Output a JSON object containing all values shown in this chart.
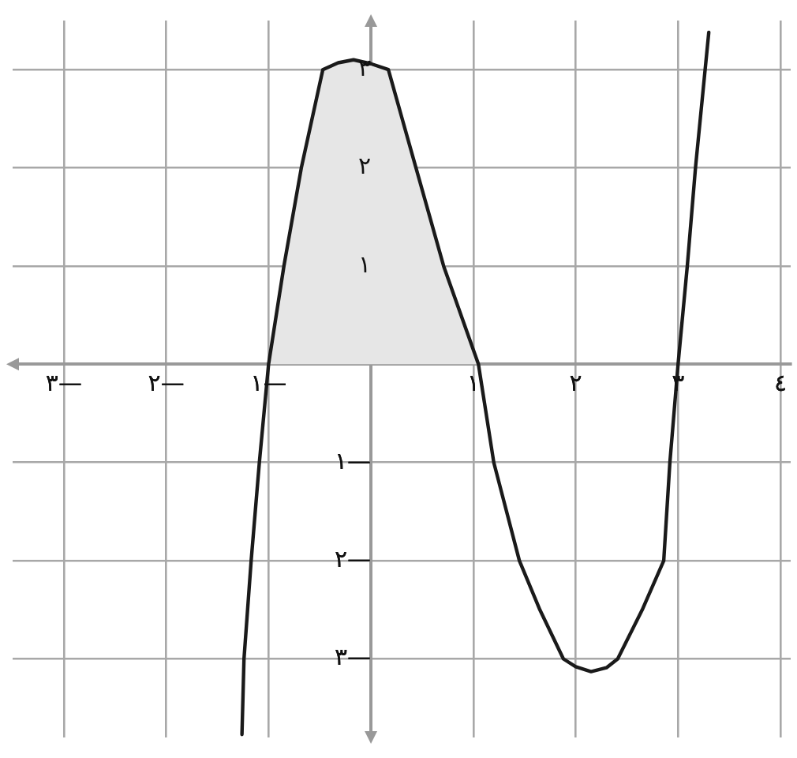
{
  "chart_data": {
    "type": "line",
    "xlim": [
      -3.5,
      4.1
    ],
    "ylim": [
      -3.8,
      3.5
    ],
    "xticks": [
      {
        "value": -3,
        "label": "٣—"
      },
      {
        "value": -2,
        "label": "٢—"
      },
      {
        "value": -1,
        "label": "١—"
      },
      {
        "value": 1,
        "label": "١"
      },
      {
        "value": 2,
        "label": "٢"
      },
      {
        "value": 3,
        "label": "٣"
      },
      {
        "value": 4,
        "label": "٤"
      }
    ],
    "yticks": [
      {
        "value": -3,
        "label": "٣—"
      },
      {
        "value": -2,
        "label": "٢—"
      },
      {
        "value": -1,
        "label": "١—"
      },
      {
        "value": 1,
        "label": "١"
      },
      {
        "value": 2,
        "label": "٢"
      },
      {
        "value": 3,
        "label": "٣"
      }
    ],
    "grid": true,
    "marker": "none",
    "line_style": "solid",
    "legend": false,
    "series": [
      {
        "type": "area",
        "color": "#e6e6e6",
        "x": [
          -1.0,
          -0.85,
          -0.68,
          -0.47,
          -0.17,
          0.17,
          0.44,
          0.71,
          1.05
        ],
        "values": [
          0,
          1,
          2,
          3,
          3.1,
          3,
          2,
          1,
          0
        ]
      },
      {
        "type": "line",
        "color": "#1a1a1a",
        "x": [
          -1.26,
          -1.24,
          -1.17,
          -1.09,
          -1.0,
          -0.85,
          -0.68,
          -0.47,
          -0.32,
          -0.17,
          0.0,
          0.17,
          0.44,
          0.71,
          1.05,
          1.2,
          1.45,
          1.65,
          1.88,
          2.0,
          2.15,
          2.3,
          2.41,
          2.65,
          2.86,
          2.92,
          3.0,
          3.09,
          3.17,
          3.3
        ],
        "values": [
          -3.77,
          -3,
          -2,
          -1,
          0,
          1,
          2,
          3,
          3.07,
          3.1,
          3.06,
          3,
          2,
          1,
          0,
          -1,
          -2,
          -2.5,
          -3,
          -3.08,
          -3.13,
          -3.09,
          -3,
          -2.5,
          -2,
          -1,
          0,
          1,
          2,
          3.38
        ]
      }
    ]
  }
}
